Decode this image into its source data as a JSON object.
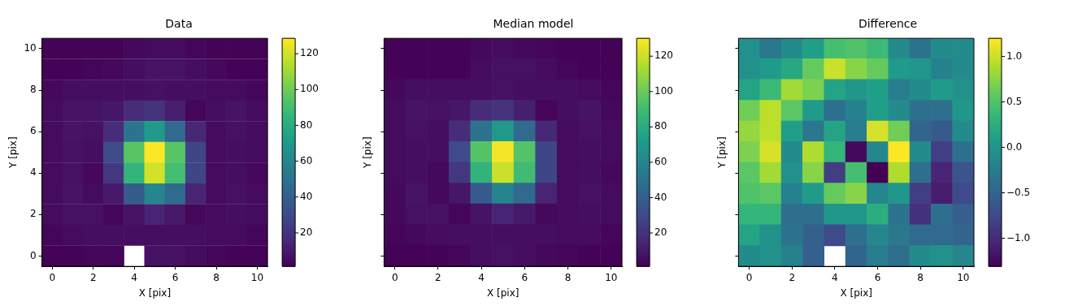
{
  "chart_data": [
    {
      "type": "heatmap",
      "title": "Data",
      "xlabel": "X [pix]",
      "ylabel": "Y [pix]",
      "categories": [
        "0",
        null,
        "2",
        null,
        "4",
        null,
        "6",
        null,
        "8",
        null,
        "10"
      ],
      "y_categories": [
        "10",
        null,
        "8",
        null,
        "6",
        null,
        "4",
        null,
        "2",
        null,
        "0"
      ],
      "cells": [
        [
          2,
          2,
          2,
          2,
          4,
          5,
          5,
          3,
          2,
          2,
          2
        ],
        [
          2,
          2,
          3,
          4,
          6,
          8,
          8,
          6,
          4,
          2,
          2
        ],
        [
          4,
          6,
          6,
          6,
          6,
          7,
          6,
          6,
          5,
          5,
          3
        ],
        [
          5,
          8,
          8,
          9,
          17,
          20,
          12,
          3,
          6,
          8,
          5
        ],
        [
          5,
          8,
          7,
          17,
          50,
          70,
          45,
          15,
          5,
          7,
          5
        ],
        [
          5,
          7,
          6,
          30,
          95,
          128,
          95,
          28,
          5,
          6,
          5
        ],
        [
          5,
          7,
          4,
          22,
          85,
          120,
          90,
          28,
          5,
          6,
          4
        ],
        [
          5,
          8,
          5,
          10,
          38,
          60,
          45,
          14,
          5,
          7,
          5
        ],
        [
          5,
          7,
          7,
          3,
          8,
          14,
          10,
          4,
          5,
          6,
          5
        ],
        [
          3,
          5,
          6,
          6,
          6,
          6,
          6,
          6,
          5,
          5,
          3
        ],
        [
          2,
          2,
          3,
          3,
          null,
          7,
          7,
          5,
          3,
          2,
          2
        ]
      ],
      "clim": [
        1.3,
        128.6
      ],
      "cticks": [
        20,
        40,
        60,
        80,
        100,
        120
      ]
    },
    {
      "type": "heatmap",
      "title": "Median model",
      "xlabel": "X [pix]",
      "ylabel": "Y [pix]",
      "tick_labels": "x",
      "categories": [
        "0",
        null,
        "2",
        null,
        "4",
        null,
        "6",
        null,
        "8",
        null,
        "10"
      ],
      "y_categories": [
        "10",
        null,
        "8",
        null,
        "6",
        null,
        "4",
        null,
        "2",
        null,
        "0"
      ],
      "cells": [
        [
          2,
          2,
          2,
          2,
          4,
          5,
          4,
          3,
          2,
          2,
          2
        ],
        [
          2,
          2,
          2,
          2,
          5,
          7,
          7,
          5,
          3,
          2,
          2
        ],
        [
          4,
          6,
          6,
          6,
          6,
          7,
          6,
          6,
          6,
          5,
          3
        ],
        [
          5,
          8,
          7,
          9,
          17,
          20,
          12,
          3,
          6,
          8,
          4
        ],
        [
          5,
          7,
          6,
          17,
          50,
          70,
          45,
          15,
          5,
          7,
          5
        ],
        [
          5,
          6,
          6,
          30,
          95,
          128,
          95,
          28,
          5,
          6,
          5
        ],
        [
          5,
          6,
          4,
          22,
          85,
          120,
          90,
          28,
          5,
          6,
          4
        ],
        [
          4,
          8,
          4,
          9,
          38,
          60,
          45,
          14,
          5,
          7,
          5
        ],
        [
          4,
          7,
          7,
          3,
          8,
          14,
          10,
          4,
          5,
          6,
          5
        ],
        [
          3,
          4,
          5,
          6,
          6,
          6,
          6,
          6,
          5,
          5,
          3
        ],
        [
          2,
          2,
          2,
          3,
          6,
          7,
          6,
          4,
          3,
          2,
          2
        ]
      ],
      "clim": [
        1.1,
        130.1
      ],
      "cticks": [
        20,
        40,
        60,
        80,
        100,
        120
      ]
    },
    {
      "type": "heatmap",
      "title": "Difference",
      "xlabel": "X [pix]",
      "ylabel": "Y [pix]",
      "tick_labels": "x",
      "categories": [
        "0",
        null,
        "2",
        null,
        "4",
        null,
        "6",
        null,
        "8",
        null,
        "10"
      ],
      "y_categories": [
        "10",
        null,
        "8",
        null,
        "6",
        null,
        "4",
        null,
        "2",
        null,
        "0"
      ],
      "cells": [
        [
          -0.05,
          -0.3,
          -0.1,
          0.1,
          0.45,
          0.5,
          0.4,
          -0.1,
          -0.35,
          -0.1,
          -0.1
        ],
        [
          -0.05,
          0.05,
          0.2,
          0.6,
          1.0,
          0.75,
          0.6,
          0.05,
          0.0,
          -0.2,
          -0.1
        ],
        [
          0.15,
          0.4,
          0.85,
          0.7,
          0.15,
          0.0,
          0.1,
          -0.25,
          -0.1,
          0.05,
          -0.05
        ],
        [
          0.65,
          0.95,
          0.55,
          0.05,
          -0.4,
          -0.2,
          0.1,
          -0.1,
          -0.4,
          -0.4,
          0.0
        ],
        [
          0.8,
          0.95,
          0.1,
          -0.3,
          0.15,
          -0.25,
          1.05,
          0.65,
          -0.5,
          -0.6,
          -0.1
        ],
        [
          0.7,
          1.05,
          -0.1,
          0.9,
          0.35,
          -1.25,
          -0.15,
          1.2,
          -0.1,
          -0.85,
          -0.4
        ],
        [
          0.55,
          0.85,
          -0.05,
          0.75,
          -0.85,
          0.45,
          -1.31,
          0.9,
          -0.4,
          -1.05,
          -0.65
        ],
        [
          0.5,
          0.55,
          -0.2,
          0.05,
          0.6,
          0.75,
          -0.15,
          0.0,
          -0.85,
          -1.1,
          -0.75
        ],
        [
          0.35,
          0.35,
          -0.4,
          -0.4,
          0.0,
          0.0,
          0.25,
          -0.35,
          -0.95,
          -0.4,
          -0.55
        ],
        [
          0.15,
          -0.05,
          -0.35,
          -0.55,
          -0.75,
          -0.4,
          -0.15,
          -0.3,
          -0.45,
          -0.45,
          -0.5
        ],
        [
          -0.1,
          -0.05,
          -0.2,
          -0.55,
          null,
          -0.5,
          -0.25,
          -0.4,
          -0.1,
          -0.05,
          -0.15
        ]
      ],
      "clim": [
        -1.31,
        1.2
      ],
      "cticks": [
        {
          "value": -1.0,
          "label": "−1.0"
        },
        {
          "value": -0.5,
          "label": "−0.5"
        },
        {
          "value": 0,
          "label": "0.0"
        },
        {
          "value": 0.5,
          "label": "0.5"
        },
        {
          "value": 1.0,
          "label": "1.0"
        }
      ]
    }
  ]
}
